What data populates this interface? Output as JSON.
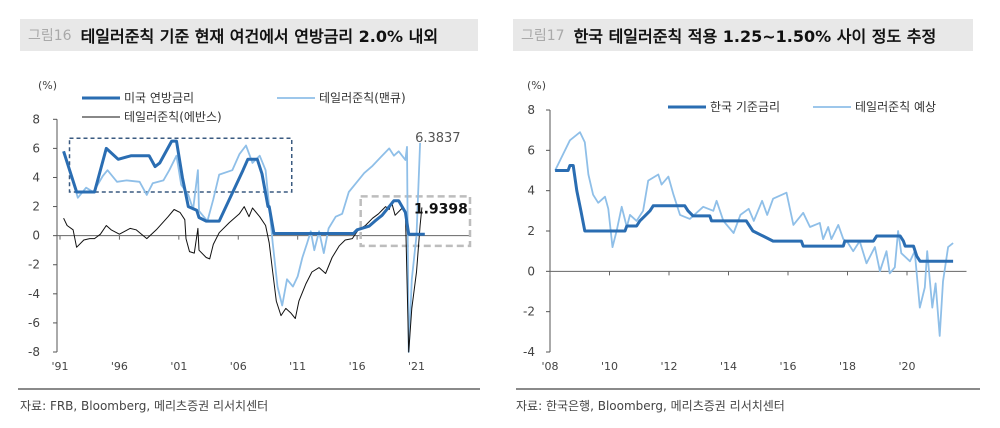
{
  "panels": [
    {
      "figure_no": "그림16",
      "title": "테일러준칙 기준 현재 여건에서 연방금리 2.0% 내외",
      "source": "자료: FRB, Bloomberg, 메리츠증권 리서치센터"
    },
    {
      "figure_no": "그림17",
      "title": "한국 테일러준칙 적용 1.25~1.50% 사이 정도 추정",
      "source": "자료: 한국은행, Bloomberg, 메리츠증권 리서치센터"
    }
  ],
  "chart_data": [
    {
      "type": "line",
      "ylabel": "(%)",
      "ylim": [
        -8,
        8
      ],
      "yticks": [
        -8,
        -6,
        -4,
        -2,
        0,
        2,
        4,
        6,
        8
      ],
      "xlim": [
        1991,
        2025.5
      ],
      "xticks": [
        1991,
        1996,
        2001,
        2006,
        2011,
        2016,
        2021
      ],
      "xtick_labels": [
        "'91",
        "'96",
        "'01",
        "'06",
        "'11",
        "'16",
        "'21"
      ],
      "legend_placement": "top-left",
      "annotations": [
        {
          "text": "6.3837",
          "x": 2021.3,
          "y": 6.38
        },
        {
          "text": "1.9398",
          "x": 2021.45,
          "y": 1.94
        }
      ],
      "highlight_boxes": [
        {
          "x": [
            1991.8,
            2010.5
          ],
          "y": [
            3.0,
            6.7
          ],
          "color": "#3a5a80"
        },
        {
          "x": [
            2016.3,
            2025.5
          ],
          "y": [
            -0.7,
            2.7
          ],
          "color": "#bdbdbd"
        }
      ],
      "series": [
        {
          "name": "미국 연방금리",
          "color": "#2a6db2",
          "width": 3,
          "x": [
            1991.3,
            1992.4,
            1993.9,
            1994.9,
            1995.9,
            1997.0,
            1998.5,
            1999.0,
            1999.4,
            2000.4,
            2000.8,
            2001.3,
            2001.8,
            2002.5,
            2002.7,
            2003.3,
            2004.4,
            2006.4,
            2006.8,
            2007.6,
            2008.0,
            2008.5,
            2008.6,
            2009.0,
            2015.7,
            2016.0,
            2017.0,
            2017.5,
            2018.1,
            2018.7,
            2019.1,
            2019.5,
            2020.06,
            2020.34,
            2021.7
          ],
          "y": [
            5.8,
            3.0,
            3.0,
            6.0,
            5.25,
            5.5,
            5.5,
            4.75,
            5.0,
            6.5,
            6.5,
            4.0,
            2.0,
            1.75,
            1.25,
            1.0,
            1.0,
            4.5,
            5.25,
            5.25,
            4.25,
            2.0,
            2.0,
            0.15,
            0.15,
            0.4,
            0.65,
            1.0,
            1.4,
            2.0,
            2.4,
            2.4,
            1.6,
            0.1,
            0.1
          ]
        },
        {
          "name": "테일러준칙(맨큐)",
          "color": "#8fbfe8",
          "width": 1.8,
          "x": [
            1991.3,
            1992.1,
            1992.5,
            1993.2,
            1993.8,
            1994.6,
            1995.0,
            1995.8,
            1996.6,
            1997.7,
            1998.3,
            1998.8,
            1999.7,
            2000.2,
            2000.8,
            2001.2,
            2001.8,
            2002.2,
            2002.6,
            2002.7,
            2003.4,
            2003.9,
            2004.4,
            2005.5,
            2006.1,
            2006.65,
            2007.2,
            2007.8,
            2008.3,
            2008.6,
            2008.9,
            2009.3,
            2009.7,
            2010.1,
            2010.6,
            2011.0,
            2011.4,
            2011.8,
            2012.1,
            2012.4,
            2012.8,
            2013.2,
            2013.6,
            2014.2,
            2014.75,
            2015.3,
            2016.0,
            2016.6,
            2017.3,
            2018.1,
            2018.7,
            2019.1,
            2019.5,
            2020.06,
            2020.2,
            2020.34,
            2020.6,
            2021.0,
            2021.3
          ],
          "y": [
            5.8,
            3.7,
            2.6,
            3.3,
            3.0,
            4.1,
            4.5,
            3.7,
            3.8,
            3.7,
            2.8,
            3.6,
            3.8,
            4.5,
            5.5,
            3.5,
            2.8,
            1.8,
            4.5,
            1.7,
            1.0,
            2.5,
            4.2,
            4.5,
            5.6,
            6.2,
            5.0,
            5.5,
            4.5,
            2.0,
            -0.5,
            -3.5,
            -4.8,
            -3.0,
            -3.5,
            -2.8,
            -1.5,
            -0.5,
            0.3,
            -1.0,
            0.3,
            -1.2,
            0.5,
            1.3,
            1.5,
            3.0,
            3.7,
            4.3,
            4.8,
            5.5,
            6.0,
            5.5,
            5.8,
            5.2,
            6.1,
            -8.0,
            -3.0,
            0.0,
            6.38
          ]
        },
        {
          "name": "테일러준칙(에반스)",
          "color": "#111111",
          "width": 1,
          "x": [
            1991.3,
            1991.6,
            1992.1,
            1992.4,
            1993.0,
            1993.5,
            1993.9,
            1994.4,
            1994.9,
            1995.3,
            1996.0,
            1996.9,
            1997.4,
            1998.3,
            1999.1,
            2000.1,
            2000.6,
            2001.1,
            2001.5,
            2001.6,
            2001.9,
            2002.3,
            2002.6,
            2002.7,
            2003.3,
            2003.6,
            2003.9,
            2004.4,
            2005.25,
            2006.1,
            2006.5,
            2006.9,
            2007.2,
            2007.8,
            2008.3,
            2008.6,
            2008.9,
            2009.2,
            2009.6,
            2010.0,
            2010.4,
            2010.8,
            2011.1,
            2011.7,
            2012.2,
            2012.8,
            2013.35,
            2013.9,
            2014.5,
            2015.0,
            2015.6,
            2016.1,
            2016.7,
            2017.3,
            2017.8,
            2018.4,
            2018.7,
            2018.9,
            2019.2,
            2019.8,
            2020.06,
            2020.34,
            2020.6,
            2021.0,
            2021.3,
            2021.45
          ],
          "y": [
            1.2,
            0.7,
            0.4,
            -0.8,
            -0.3,
            -0.2,
            -0.2,
            0.1,
            0.7,
            0.4,
            0.1,
            0.5,
            0.4,
            -0.2,
            0.4,
            1.3,
            1.8,
            1.6,
            1.1,
            -0.2,
            -1.1,
            -1.2,
            0.5,
            -1.0,
            -1.5,
            -1.6,
            -0.6,
            0.2,
            0.9,
            1.5,
            2.0,
            1.3,
            1.9,
            1.3,
            0.7,
            -0.5,
            -2.5,
            -4.5,
            -5.5,
            -5.0,
            -5.3,
            -5.7,
            -4.5,
            -3.3,
            -2.5,
            -2.2,
            -2.6,
            -1.5,
            -0.7,
            -0.3,
            -0.2,
            0.4,
            0.7,
            1.2,
            1.5,
            2.0,
            1.8,
            2.3,
            1.4,
            1.9,
            1.7,
            -8.0,
            -5.0,
            -2.5,
            0.7,
            1.94
          ]
        }
      ]
    },
    {
      "type": "line",
      "ylabel": "(%)",
      "ylim": [
        -4,
        8
      ],
      "yticks": [
        -4,
        -2,
        0,
        2,
        4,
        6,
        8
      ],
      "xlim": [
        2008,
        2022
      ],
      "xticks": [
        2008,
        2010,
        2012,
        2014,
        2016,
        2018,
        2020
      ],
      "xtick_labels": [
        "'08",
        "'10",
        "'12",
        "'14",
        "'16",
        "'18",
        "'20"
      ],
      "legend_placement": "top-right",
      "series": [
        {
          "name": "한국 기준금리",
          "color": "#2a6db2",
          "width": 3,
          "x": [
            2008.17,
            2008.61,
            2008.67,
            2008.78,
            2008.9,
            2009.04,
            2009.17,
            2010.52,
            2010.58,
            2010.91,
            2011.02,
            2011.19,
            2011.36,
            2011.47,
            2012.53,
            2012.64,
            2012.81,
            2013.37,
            2013.43,
            2014.6,
            2014.71,
            2014.82,
            2015.16,
            2015.5,
            2016.45,
            2016.51,
            2017.86,
            2017.91,
            2018.87,
            2018.98,
            2019.77,
            2019.88,
            2019.94,
            2020.22,
            2020.33,
            2020.44,
            2021.55
          ],
          "y": [
            5,
            5,
            5.25,
            5.25,
            4.0,
            3.0,
            2.0,
            2.0,
            2.25,
            2.25,
            2.5,
            2.75,
            3.0,
            3.25,
            3.25,
            3.0,
            2.75,
            2.75,
            2.5,
            2.5,
            2.25,
            2.0,
            1.75,
            1.5,
            1.5,
            1.25,
            1.25,
            1.5,
            1.5,
            1.75,
            1.75,
            1.5,
            1.25,
            1.25,
            0.75,
            0.5,
            0.5
          ]
        },
        {
          "name": "테일러준칙 예상",
          "color": "#8fbfe8",
          "width": 1.8,
          "x": [
            2008.17,
            2008.67,
            2009.01,
            2009.17,
            2009.29,
            2009.45,
            2009.62,
            2009.85,
            2009.96,
            2010.1,
            2010.24,
            2010.41,
            2010.58,
            2010.69,
            2010.91,
            2011.13,
            2011.3,
            2011.64,
            2011.75,
            2011.98,
            2012.15,
            2012.37,
            2012.7,
            2013.15,
            2013.49,
            2013.6,
            2013.83,
            2014.17,
            2014.4,
            2014.68,
            2014.85,
            2015.13,
            2015.3,
            2015.5,
            2015.95,
            2016.18,
            2016.51,
            2016.74,
            2017.07,
            2017.18,
            2017.35,
            2017.46,
            2017.69,
            2017.86,
            2018.02,
            2018.19,
            2018.41,
            2018.64,
            2018.92,
            2019.09,
            2019.31,
            2019.42,
            2019.59,
            2019.7,
            2019.81,
            2020.1,
            2020.26,
            2020.43,
            2020.6,
            2020.68,
            2020.85,
            2020.96,
            2021.1,
            2021.21,
            2021.38,
            2021.55
          ],
          "y": [
            5,
            6.5,
            6.9,
            6.4,
            4.8,
            3.8,
            3.4,
            3.7,
            3.1,
            1.2,
            2.0,
            3.2,
            2.2,
            2.8,
            2.5,
            3.0,
            4.5,
            4.8,
            4.3,
            4.7,
            3.8,
            2.8,
            2.6,
            3.2,
            3.0,
            3.5,
            2.5,
            1.9,
            2.8,
            3.1,
            2.5,
            3.5,
            2.8,
            3.6,
            3.9,
            2.3,
            2.9,
            2.2,
            2.4,
            1.6,
            2.2,
            1.6,
            2.3,
            1.6,
            1.4,
            1.0,
            1.5,
            0.4,
            1.2,
            0.0,
            1.0,
            -0.1,
            0.2,
            2.0,
            0.9,
            0.5,
            1.0,
            -1.8,
            -0.8,
            1.0,
            -1.8,
            -0.6,
            -3.2,
            -0.5,
            1.2,
            1.4
          ]
        }
      ]
    }
  ]
}
